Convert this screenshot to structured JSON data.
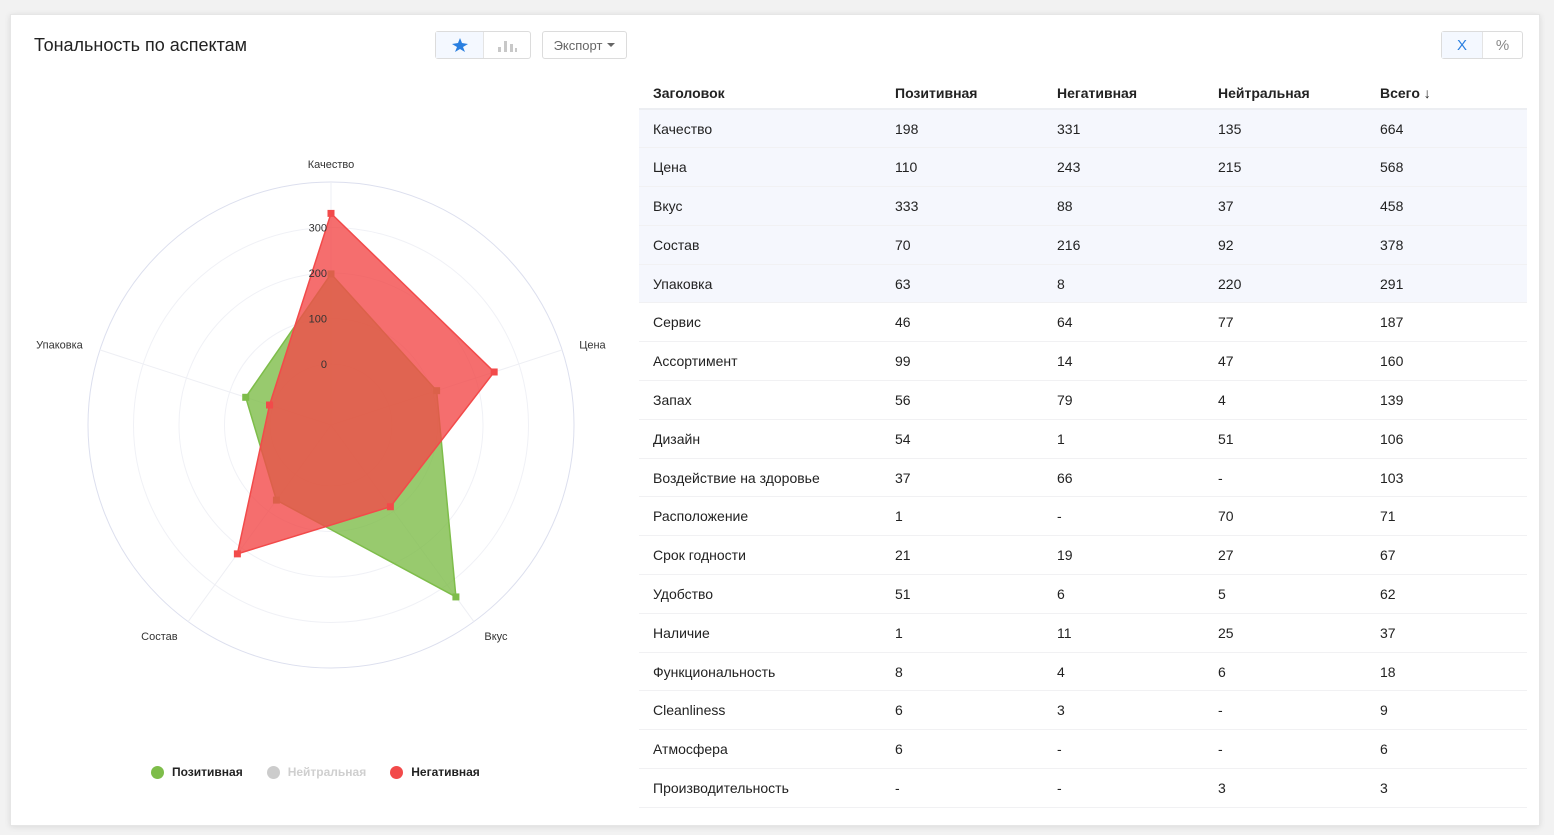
{
  "header": {
    "title": "Тональность по аспектам",
    "export_label": "Экспорт",
    "mode_count": "X",
    "mode_percent": "%"
  },
  "chart_data": {
    "type": "radar",
    "categories": [
      "Качество",
      "Цена",
      "Вкус",
      "Состав",
      "Упаковка"
    ],
    "series": [
      {
        "name": "Позитивная",
        "values": [
          198,
          110,
          333,
          70,
          63
        ],
        "color": "#7ebd4a",
        "visible": true
      },
      {
        "name": "Нейтральная",
        "values": [
          135,
          215,
          37,
          92,
          220
        ],
        "color": "#cccccc",
        "visible": false
      },
      {
        "name": "Негативная",
        "values": [
          331,
          243,
          88,
          216,
          8
        ],
        "color": "#f24a4a",
        "visible": true
      }
    ],
    "radial_ticks": [
      "0",
      "100",
      "200",
      "300"
    ],
    "radial_range": [
      0,
      400
    ],
    "radial_min": -100,
    "grid": true,
    "legend_position": "bottom"
  },
  "legend": [
    {
      "label": "Позитивная",
      "color": "#7ebd4a",
      "disabled": false
    },
    {
      "label": "Нейтральная",
      "color": "#cccccc",
      "disabled": true
    },
    {
      "label": "Негативная",
      "color": "#f24a4a",
      "disabled": false
    }
  ],
  "table": {
    "headers": [
      "Заголовок",
      "Позитивная",
      "Негативная",
      "Нейтральная",
      "Всего ↓"
    ],
    "rows": [
      [
        "Качество",
        "198",
        "331",
        "135",
        "664"
      ],
      [
        "Цена",
        "110",
        "243",
        "215",
        "568"
      ],
      [
        "Вкус",
        "333",
        "88",
        "37",
        "458"
      ],
      [
        "Состав",
        "70",
        "216",
        "92",
        "378"
      ],
      [
        "Упаковка",
        "63",
        "8",
        "220",
        "291"
      ],
      [
        "Сервис",
        "46",
        "64",
        "77",
        "187"
      ],
      [
        "Ассортимент",
        "99",
        "14",
        "47",
        "160"
      ],
      [
        "Запах",
        "56",
        "79",
        "4",
        "139"
      ],
      [
        "Дизайн",
        "54",
        "1",
        "51",
        "106"
      ],
      [
        "Воздействие на здоровье",
        "37",
        "66",
        "-",
        "103"
      ],
      [
        "Расположение",
        "1",
        "-",
        "70",
        "71"
      ],
      [
        "Срок годности",
        "21",
        "19",
        "27",
        "67"
      ],
      [
        "Удобство",
        "51",
        "6",
        "5",
        "62"
      ],
      [
        "Наличие",
        "1",
        "11",
        "25",
        "37"
      ],
      [
        "Функциональность",
        "8",
        "4",
        "6",
        "18"
      ],
      [
        "Cleanliness",
        "6",
        "3",
        "-",
        "9"
      ],
      [
        "Атмосфера",
        "6",
        "-",
        "-",
        "6"
      ],
      [
        "Производительность",
        "-",
        "-",
        "3",
        "3"
      ]
    ],
    "highlighted_rows": 5
  }
}
